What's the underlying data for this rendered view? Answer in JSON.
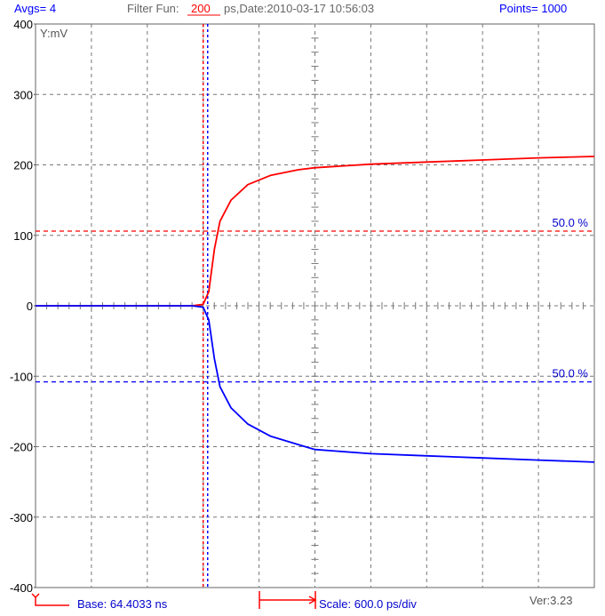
{
  "header": {
    "avgs": "Avgs= 4",
    "filter_label": "Filter Fun:",
    "filter_value": "200",
    "filter_rest": "ps,Date:2010-03-17 10:56:03",
    "points": "Points= 1000"
  },
  "footer": {
    "base": "Base: 64.4033 ns",
    "scale": "Scale: 600.0 ps/div",
    "version": "Ver:3.23"
  },
  "colors": {
    "red": "#ff0000",
    "blue": "#0000ff",
    "grid": "#777777",
    "text": "#000000",
    "label_blue": "#0000cc"
  },
  "chart_data": {
    "type": "line",
    "y_unit_label": "Y:mV",
    "ylim": [
      -400,
      400
    ],
    "yticks": [
      -400,
      -300,
      -200,
      -100,
      0,
      100,
      200,
      300,
      400
    ],
    "x_divisions": 10,
    "x_div_unit": "600.0 ps/div",
    "grid": true,
    "series": [
      {
        "color": "#ff0000",
        "x": [
          0,
          1,
          2,
          2.5,
          2.8,
          3.0,
          3.1,
          3.2,
          3.3,
          3.5,
          3.8,
          4.2,
          4.7,
          5.0,
          6,
          7,
          8,
          9,
          10
        ],
        "values": [
          0,
          0,
          0,
          0,
          0,
          2,
          20,
          80,
          120,
          150,
          172,
          185,
          193,
          196,
          201,
          204,
          207,
          210,
          212
        ]
      },
      {
        "color": "#0000ff",
        "x": [
          0,
          1,
          2,
          2.5,
          2.8,
          3.0,
          3.1,
          3.2,
          3.3,
          3.5,
          3.8,
          4.2,
          4.7,
          5.0,
          6,
          7,
          8,
          9,
          10
        ],
        "values": [
          0,
          0,
          0,
          0,
          0,
          -2,
          -20,
          -75,
          -115,
          -145,
          -168,
          -185,
          -197,
          -204,
          -210,
          -213,
          -216,
          -219,
          -222
        ]
      }
    ],
    "threshold_lines": [
      {
        "y": 106,
        "color": "#ff0000",
        "label": "50.0 %"
      },
      {
        "y": -108,
        "color": "#0000ff",
        "label": "50.0 %"
      }
    ],
    "cursor_lines": [
      {
        "x": 3.0,
        "color": "#ff0000"
      },
      {
        "x": 3.08,
        "color": "#0000ff"
      }
    ]
  }
}
